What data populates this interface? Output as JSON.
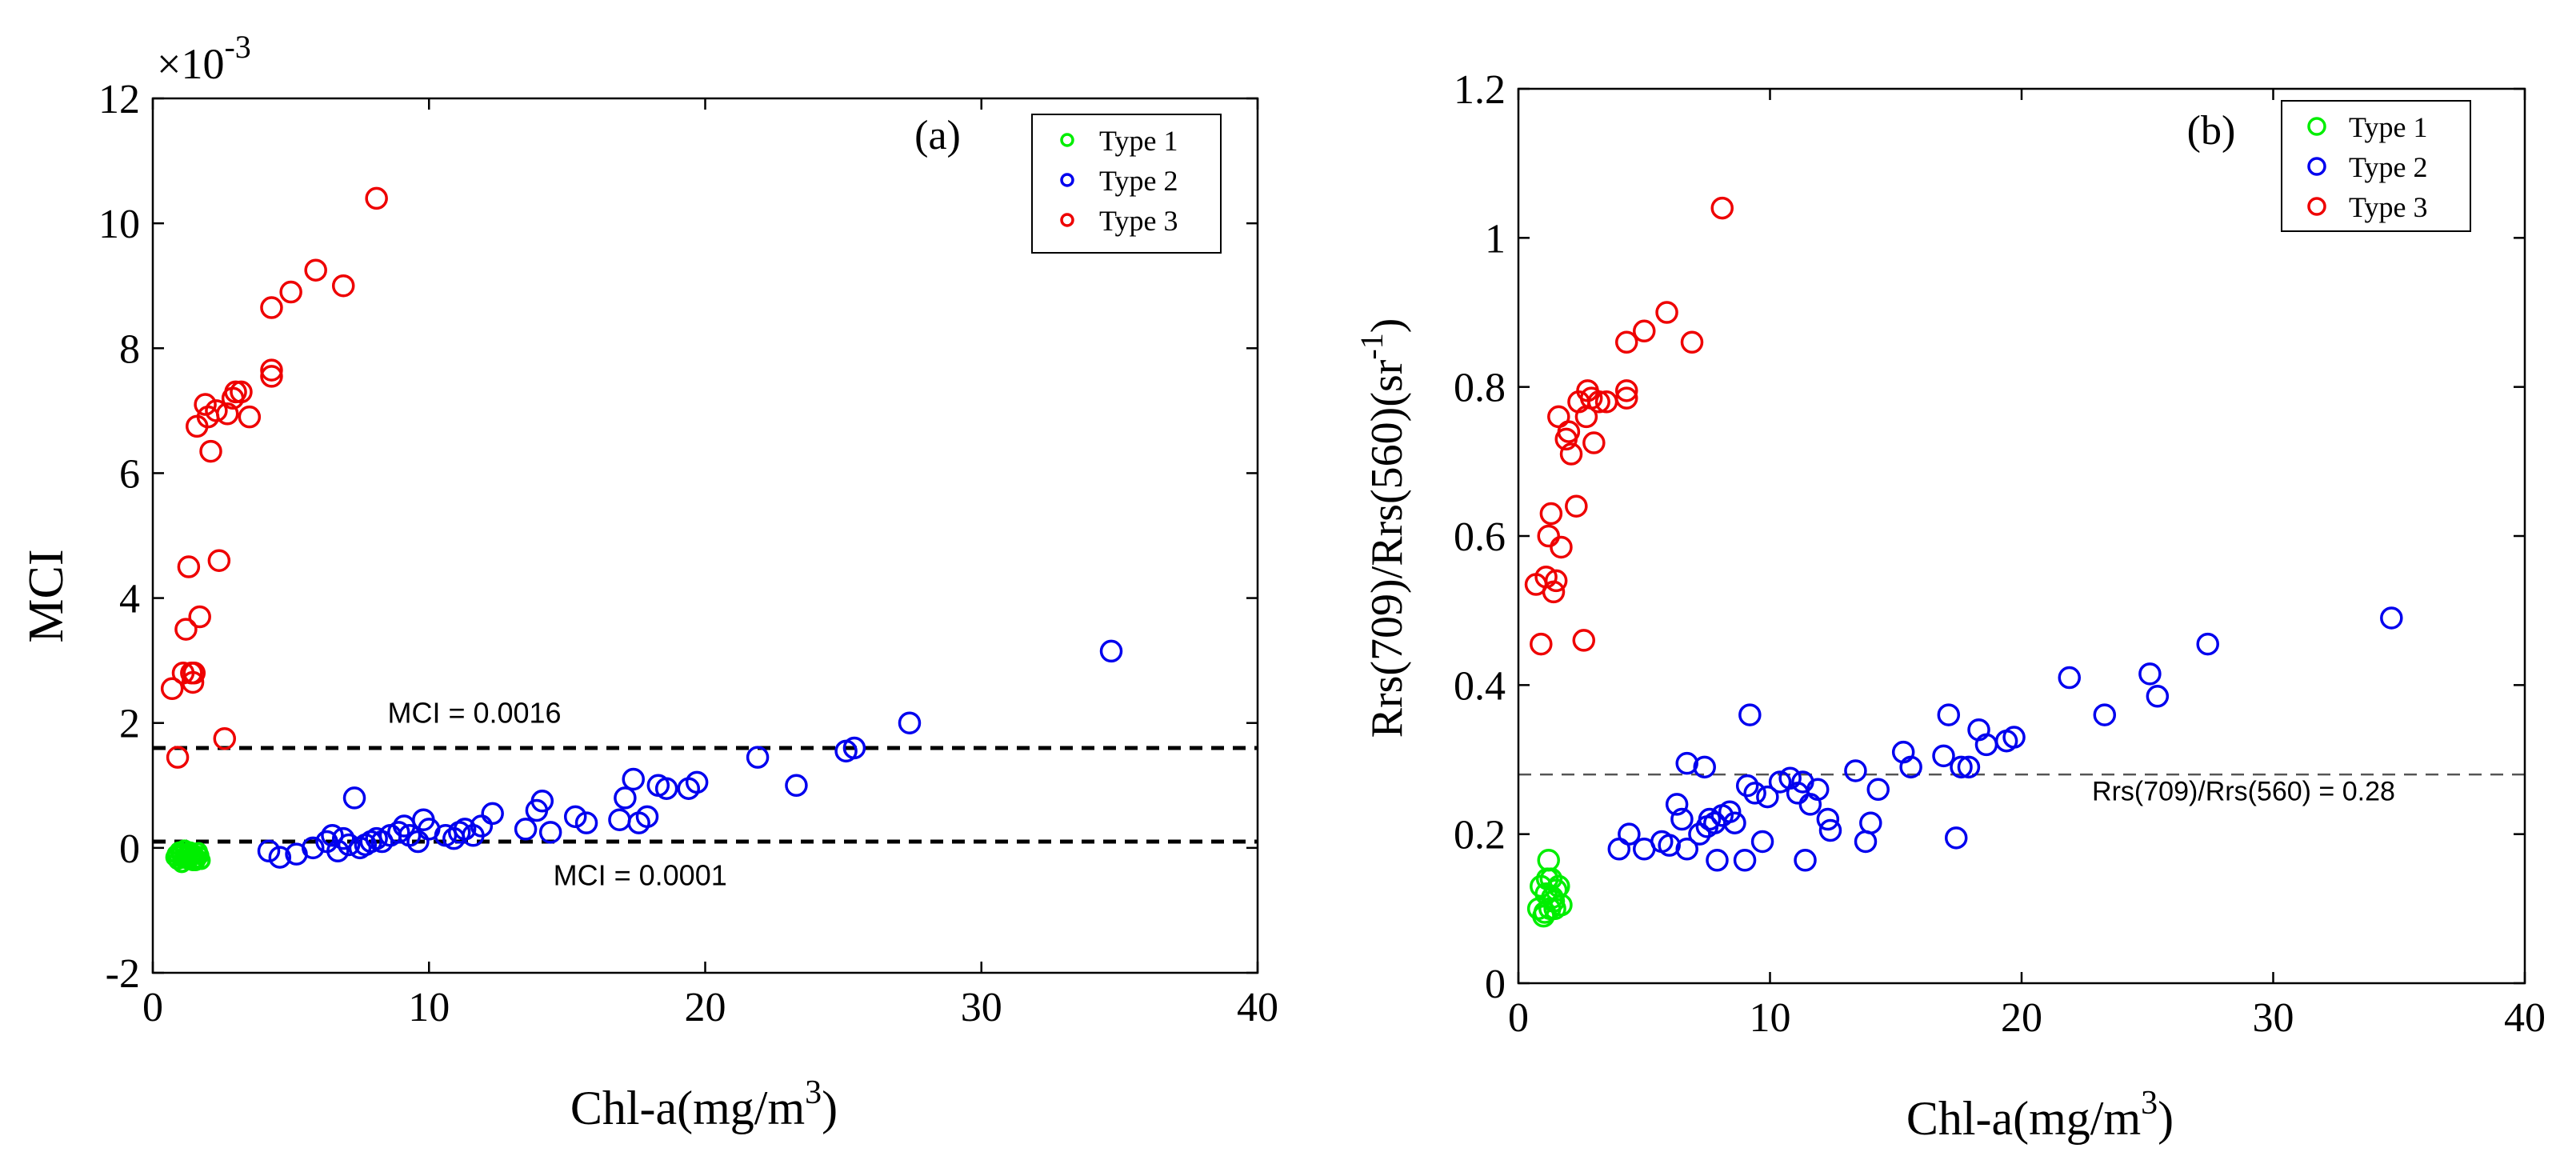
{
  "chart_data": [
    {
      "type": "scatter",
      "panel_label": "(a)",
      "xlabel": "Chl-a(mg/m",
      "xlabel_sup": "3",
      "xlabel_close": ")",
      "ylabel": "MCI",
      "y_multiplier": "×10",
      "y_multiplier_exp": "-3",
      "xlim": [
        0,
        40
      ],
      "ylim": [
        -2,
        12
      ],
      "xticks": [
        "0",
        "10",
        "20",
        "30",
        "40"
      ],
      "yticks": [
        "-2",
        "0",
        "2",
        "4",
        "6",
        "8",
        "10",
        "12"
      ],
      "grid": false,
      "legend": "top-right",
      "reference_lines": [
        {
          "y": 1.6,
          "label": "MCI = 0.0016",
          "label_x": 8.5,
          "label_y": 2.0,
          "style": "bold-dashed"
        },
        {
          "y": 0.1,
          "label": "MCI = 0.0001",
          "label_x": 14.5,
          "label_y": -0.6,
          "style": "bold-dashed"
        }
      ],
      "series": [
        {
          "name": "Type 1",
          "color": "#00ee00",
          "marker_size": "small",
          "points": [
            [
              0.8,
              -0.15
            ],
            [
              0.9,
              -0.2
            ],
            [
              1.0,
              -0.1
            ],
            [
              1.1,
              -0.18
            ],
            [
              1.2,
              -0.12
            ],
            [
              1.3,
              -0.2
            ],
            [
              1.4,
              -0.14
            ],
            [
              1.5,
              -0.1
            ],
            [
              1.6,
              -0.18
            ],
            [
              1.7,
              -0.12
            ],
            [
              0.95,
              -0.05
            ],
            [
              1.25,
              -0.08
            ],
            [
              1.45,
              -0.22
            ],
            [
              1.05,
              -0.25
            ],
            [
              1.35,
              -0.05
            ],
            [
              1.55,
              -0.22
            ],
            [
              0.85,
              -0.1
            ],
            [
              1.15,
              -0.02
            ],
            [
              1.65,
              -0.06
            ],
            [
              1.75,
              -0.2
            ]
          ]
        },
        {
          "name": "Type 2",
          "color": "#0000ee",
          "marker_size": "large",
          "points": [
            [
              4.2,
              -0.05
            ],
            [
              4.6,
              -0.15
            ],
            [
              5.2,
              -0.1
            ],
            [
              5.8,
              0.0
            ],
            [
              6.3,
              0.1
            ],
            [
              6.5,
              0.2
            ],
            [
              6.7,
              -0.05
            ],
            [
              6.9,
              0.15
            ],
            [
              7.1,
              0.05
            ],
            [
              7.3,
              0.8
            ],
            [
              7.5,
              0.0
            ],
            [
              7.7,
              0.05
            ],
            [
              7.9,
              0.1
            ],
            [
              8.1,
              0.15
            ],
            [
              8.3,
              0.1
            ],
            [
              8.6,
              0.2
            ],
            [
              8.9,
              0.25
            ],
            [
              9.1,
              0.35
            ],
            [
              9.3,
              0.2
            ],
            [
              9.6,
              0.1
            ],
            [
              9.8,
              0.45
            ],
            [
              10.0,
              0.3
            ],
            [
              10.6,
              0.2
            ],
            [
              10.9,
              0.15
            ],
            [
              11.1,
              0.25
            ],
            [
              11.3,
              0.3
            ],
            [
              11.6,
              0.2
            ],
            [
              11.9,
              0.35
            ],
            [
              12.3,
              0.55
            ],
            [
              13.5,
              0.3
            ],
            [
              13.9,
              0.6
            ],
            [
              14.1,
              0.75
            ],
            [
              14.4,
              0.25
            ],
            [
              15.3,
              0.5
            ],
            [
              15.7,
              0.4
            ],
            [
              16.9,
              0.45
            ],
            [
              17.1,
              0.8
            ],
            [
              17.4,
              1.1
            ],
            [
              17.6,
              0.4
            ],
            [
              17.9,
              0.5
            ],
            [
              18.3,
              1.0
            ],
            [
              18.6,
              0.95
            ],
            [
              19.4,
              0.95
            ],
            [
              19.7,
              1.05
            ],
            [
              21.9,
              1.45
            ],
            [
              23.3,
              1.0
            ],
            [
              25.1,
              1.55
            ],
            [
              25.4,
              1.6
            ],
            [
              27.4,
              2.0
            ],
            [
              34.7,
              3.15
            ]
          ]
        },
        {
          "name": "Type 3",
          "color": "#ee0000",
          "marker_size": "large",
          "points": [
            [
              0.7,
              2.55
            ],
            [
              0.9,
              1.45
            ],
            [
              1.1,
              2.8
            ],
            [
              1.2,
              3.5
            ],
            [
              1.3,
              4.5
            ],
            [
              1.4,
              2.8
            ],
            [
              1.45,
              2.65
            ],
            [
              1.5,
              2.8
            ],
            [
              1.7,
              3.7
            ],
            [
              1.6,
              6.75
            ],
            [
              1.9,
              7.1
            ],
            [
              2.0,
              6.9
            ],
            [
              2.1,
              6.35
            ],
            [
              2.3,
              7.0
            ],
            [
              2.4,
              4.6
            ],
            [
              2.6,
              1.75
            ],
            [
              2.7,
              6.95
            ],
            [
              2.9,
              7.2
            ],
            [
              3.0,
              7.3
            ],
            [
              3.2,
              7.3
            ],
            [
              3.5,
              6.9
            ],
            [
              4.3,
              7.55
            ],
            [
              4.3,
              7.65
            ],
            [
              4.3,
              8.65
            ],
            [
              5.0,
              8.9
            ],
            [
              5.9,
              9.25
            ],
            [
              6.9,
              9.0
            ],
            [
              8.1,
              10.4
            ]
          ]
        }
      ]
    },
    {
      "type": "scatter",
      "panel_label": "(b)",
      "xlabel": "Chl-a(mg/m",
      "xlabel_sup": "3",
      "xlabel_close": ")",
      "ylabel": "Rrs(709)/Rrs(560)(sr",
      "ylabel_sup": "-1",
      "ylabel_close": ")",
      "xlim": [
        0,
        40
      ],
      "ylim": [
        0,
        1.2
      ],
      "xticks": [
        "0",
        "10",
        "20",
        "30",
        "40"
      ],
      "yticks": [
        "0",
        "0.2",
        "0.4",
        "0.6",
        "0.8",
        "1",
        "1.2"
      ],
      "grid": false,
      "legend": "top-right",
      "reference_lines": [
        {
          "y": 0.28,
          "label": "Rrs(709)/Rrs(560) = 0.28",
          "label_x": 22.8,
          "label_y": 0.245,
          "style": "thin-dashed"
        }
      ],
      "series": [
        {
          "name": "Type 1",
          "color": "#00ee00",
          "marker_size": "large",
          "points": [
            [
              0.8,
              0.1
            ],
            [
              0.9,
              0.13
            ],
            [
              1.0,
              0.09
            ],
            [
              1.1,
              0.12
            ],
            [
              1.2,
              0.165
            ],
            [
              1.25,
              0.1
            ],
            [
              1.3,
              0.14
            ],
            [
              1.4,
              0.11
            ],
            [
              1.5,
              0.125
            ],
            [
              1.6,
              0.13
            ],
            [
              1.7,
              0.105
            ],
            [
              1.05,
              0.095
            ],
            [
              1.35,
              0.115
            ],
            [
              1.45,
              0.1
            ],
            [
              1.15,
              0.14
            ]
          ]
        },
        {
          "name": "Type 2",
          "color": "#0000ee",
          "marker_size": "large",
          "points": [
            [
              4.0,
              0.18
            ],
            [
              4.4,
              0.2
            ],
            [
              5.0,
              0.18
            ],
            [
              5.7,
              0.19
            ],
            [
              6.0,
              0.185
            ],
            [
              6.3,
              0.24
            ],
            [
              6.5,
              0.22
            ],
            [
              6.7,
              0.18
            ],
            [
              6.7,
              0.295
            ],
            [
              7.2,
              0.2
            ],
            [
              7.4,
              0.29
            ],
            [
              7.5,
              0.21
            ],
            [
              7.6,
              0.22
            ],
            [
              7.8,
              0.215
            ],
            [
              7.9,
              0.165
            ],
            [
              8.1,
              0.225
            ],
            [
              8.4,
              0.23
            ],
            [
              8.6,
              0.215
            ],
            [
              9.0,
              0.165
            ],
            [
              9.1,
              0.265
            ],
            [
              9.2,
              0.36
            ],
            [
              9.4,
              0.255
            ],
            [
              9.7,
              0.19
            ],
            [
              9.9,
              0.25
            ],
            [
              10.4,
              0.27
            ],
            [
              10.8,
              0.275
            ],
            [
              11.1,
              0.255
            ],
            [
              11.3,
              0.27
            ],
            [
              11.4,
              0.165
            ],
            [
              11.6,
              0.24
            ],
            [
              11.9,
              0.26
            ],
            [
              12.3,
              0.22
            ],
            [
              12.4,
              0.205
            ],
            [
              13.4,
              0.285
            ],
            [
              13.8,
              0.19
            ],
            [
              14.0,
              0.215
            ],
            [
              14.3,
              0.26
            ],
            [
              15.3,
              0.31
            ],
            [
              15.6,
              0.29
            ],
            [
              16.9,
              0.305
            ],
            [
              17.1,
              0.36
            ],
            [
              17.4,
              0.195
            ],
            [
              17.6,
              0.29
            ],
            [
              17.9,
              0.29
            ],
            [
              18.3,
              0.34
            ],
            [
              18.6,
              0.32
            ],
            [
              19.4,
              0.325
            ],
            [
              19.7,
              0.33
            ],
            [
              21.9,
              0.41
            ],
            [
              23.3,
              0.36
            ],
            [
              25.1,
              0.415
            ],
            [
              25.4,
              0.385
            ],
            [
              27.4,
              0.455
            ],
            [
              34.7,
              0.49
            ]
          ]
        },
        {
          "name": "Type 3",
          "color": "#ee0000",
          "marker_size": "large",
          "points": [
            [
              0.7,
              0.535
            ],
            [
              0.9,
              0.455
            ],
            [
              1.1,
              0.545
            ],
            [
              1.2,
              0.6
            ],
            [
              1.3,
              0.63
            ],
            [
              1.4,
              0.525
            ],
            [
              1.5,
              0.54
            ],
            [
              1.7,
              0.585
            ],
            [
              1.6,
              0.76
            ],
            [
              1.9,
              0.73
            ],
            [
              2.0,
              0.74
            ],
            [
              2.1,
              0.71
            ],
            [
              2.3,
              0.64
            ],
            [
              2.4,
              0.78
            ],
            [
              2.6,
              0.46
            ],
            [
              2.7,
              0.76
            ],
            [
              2.75,
              0.795
            ],
            [
              2.9,
              0.785
            ],
            [
              3.0,
              0.725
            ],
            [
              3.2,
              0.78
            ],
            [
              3.5,
              0.78
            ],
            [
              4.3,
              0.785
            ],
            [
              4.3,
              0.795
            ],
            [
              4.3,
              0.86
            ],
            [
              5.0,
              0.875
            ],
            [
              5.9,
              0.9
            ],
            [
              6.9,
              0.86
            ],
            [
              8.1,
              1.04
            ]
          ]
        }
      ]
    }
  ]
}
